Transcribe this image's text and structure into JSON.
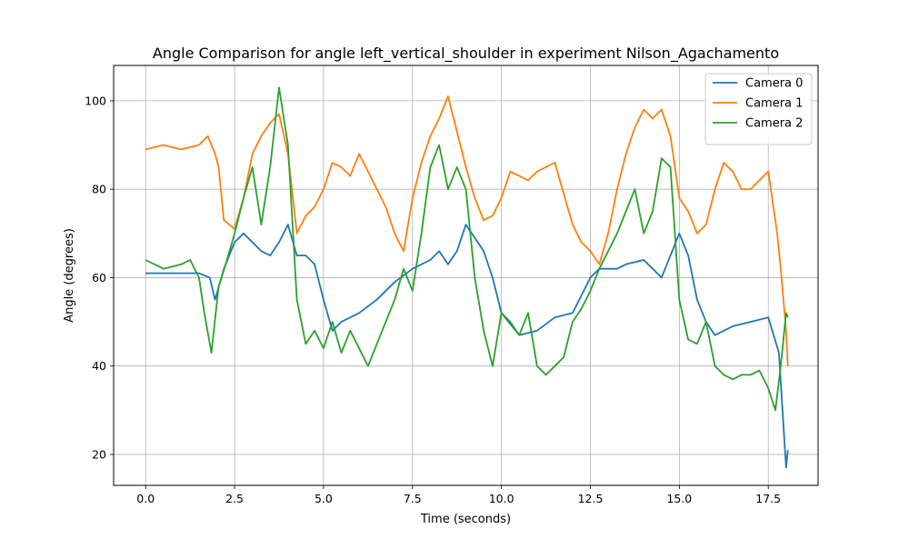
{
  "chart_data": {
    "type": "line",
    "title": "Angle Comparison for angle left_vertical_shoulder in experiment Nilson_Agachamento",
    "xlabel": "Time (seconds)",
    "ylabel": "Angle (degrees)",
    "xlim": [
      -0.9,
      18.9
    ],
    "ylim": [
      13,
      108
    ],
    "xticks": [
      0,
      2.5,
      5,
      7.5,
      10,
      12.5,
      15,
      17.5
    ],
    "xtick_labels": [
      "0.0",
      "2.5",
      "5.0",
      "7.5",
      "10.0",
      "12.5",
      "15.0",
      "17.5"
    ],
    "yticks": [
      20,
      40,
      60,
      80,
      100
    ],
    "ytick_labels": [
      "20",
      "40",
      "60",
      "80",
      "100"
    ],
    "grid": true,
    "legend_position": "top-right",
    "series": [
      {
        "name": "Camera 0",
        "color": "#1f77b4",
        "x": [
          0,
          0.5,
          1,
          1.5,
          1.8,
          1.95,
          2.2,
          2.5,
          2.75,
          3,
          3.25,
          3.5,
          3.75,
          4,
          4.25,
          4.5,
          4.75,
          5,
          5.25,
          5.5,
          6,
          6.5,
          7,
          7.5,
          8,
          8.25,
          8.5,
          8.75,
          9,
          9.25,
          9.5,
          9.75,
          10,
          10.5,
          11,
          11.5,
          12,
          12.25,
          12.5,
          12.75,
          13,
          13.25,
          13.5,
          14,
          14.25,
          14.5,
          14.75,
          15,
          15.25,
          15.5,
          15.75,
          16,
          16.5,
          17,
          17.5,
          17.8,
          18,
          18.05
        ],
        "y": [
          61,
          61,
          61,
          61,
          60,
          55,
          62,
          68,
          70,
          68,
          66,
          65,
          68,
          72,
          65,
          65,
          63,
          55,
          48,
          50,
          52,
          55,
          59,
          62,
          64,
          66,
          63,
          66,
          72,
          69,
          66,
          60,
          52,
          47,
          48,
          51,
          52,
          56,
          60,
          62,
          62,
          62,
          63,
          64,
          62,
          60,
          65,
          70,
          65,
          55,
          50,
          47,
          49,
          50,
          51,
          43,
          17,
          21
        ]
      },
      {
        "name": "Camera 1",
        "color": "#ff7f0e",
        "x": [
          0,
          0.5,
          1,
          1.5,
          1.75,
          1.95,
          2.05,
          2.2,
          2.5,
          2.75,
          3,
          3.25,
          3.5,
          3.75,
          4,
          4.25,
          4.5,
          4.75,
          5,
          5.25,
          5.5,
          5.75,
          6,
          6.25,
          6.5,
          6.75,
          7,
          7.25,
          7.5,
          7.75,
          8,
          8.25,
          8.5,
          8.75,
          9,
          9.25,
          9.5,
          9.75,
          10,
          10.25,
          10.5,
          10.75,
          11,
          11.5,
          12,
          12.25,
          12.5,
          12.75,
          13,
          13.25,
          13.5,
          13.75,
          14,
          14.25,
          14.5,
          14.75,
          15,
          15.25,
          15.5,
          15.75,
          16,
          16.25,
          16.5,
          16.75,
          17,
          17.25,
          17.5,
          17.75,
          17.85,
          18,
          18.05
        ],
        "y": [
          89,
          90,
          89,
          90,
          92,
          88,
          85,
          73,
          71,
          78,
          88,
          92,
          95,
          97,
          88,
          70,
          74,
          76,
          80,
          86,
          85,
          83,
          88,
          84,
          80,
          76,
          70,
          66,
          78,
          86,
          92,
          96,
          101,
          93,
          85,
          78,
          73,
          74,
          78,
          84,
          83,
          82,
          84,
          86,
          72,
          68,
          66,
          63,
          70,
          80,
          88,
          94,
          98,
          96,
          98,
          92,
          78,
          75,
          70,
          72,
          80,
          86,
          84,
          80,
          80,
          82,
          84,
          70,
          62,
          48,
          40
        ]
      },
      {
        "name": "Camera 2",
        "color": "#2ca02c",
        "x": [
          0,
          0.5,
          1,
          1.25,
          1.5,
          1.65,
          1.85,
          2.05,
          2.25,
          2.5,
          2.75,
          3,
          3.25,
          3.5,
          3.75,
          4,
          4.25,
          4.5,
          4.75,
          5,
          5.25,
          5.5,
          5.75,
          6,
          6.25,
          6.5,
          6.75,
          7,
          7.25,
          7.5,
          7.75,
          8,
          8.25,
          8.5,
          8.75,
          9,
          9.25,
          9.5,
          9.75,
          10,
          10.25,
          10.5,
          10.75,
          11,
          11.25,
          11.5,
          11.75,
          12,
          12.25,
          12.5,
          12.75,
          13,
          13.25,
          13.5,
          13.75,
          14,
          14.25,
          14.5,
          14.75,
          15,
          15.25,
          15.5,
          15.75,
          16,
          16.25,
          16.5,
          16.75,
          17,
          17.25,
          17.5,
          17.7,
          17.85,
          18,
          18.05
        ],
        "y": [
          64,
          62,
          63,
          64,
          60,
          52,
          43,
          58,
          63,
          70,
          78,
          85,
          72,
          85,
          103,
          90,
          55,
          45,
          48,
          44,
          50,
          43,
          48,
          44,
          40,
          45,
          50,
          55,
          62,
          57,
          70,
          85,
          90,
          80,
          85,
          80,
          60,
          48,
          40,
          52,
          50,
          47,
          52,
          40,
          38,
          40,
          42,
          50,
          53,
          57,
          62,
          66,
          70,
          75,
          80,
          70,
          75,
          87,
          85,
          55,
          46,
          45,
          50,
          40,
          38,
          37,
          38,
          38,
          39,
          35,
          30,
          40,
          52,
          51
        ]
      }
    ]
  }
}
